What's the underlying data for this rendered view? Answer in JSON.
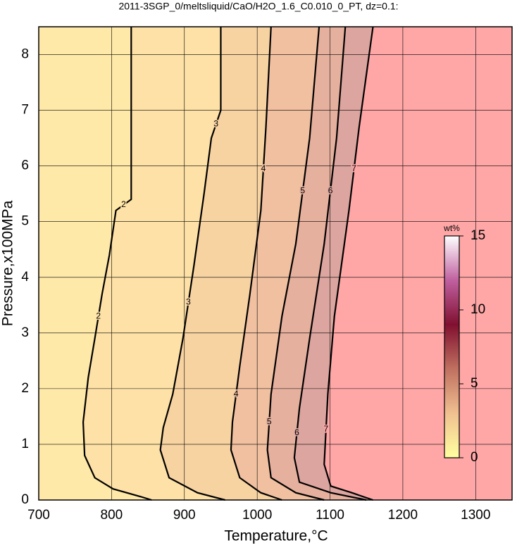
{
  "chart_data": {
    "type": "contour",
    "title": "2011-3SGP_0/meltsliquid/CaO/H2O_1.6_C0.010_0_PT, dz=0.1:",
    "x_label": "Temperature,°C",
    "y_label": "Pressure,x100MPa",
    "xlim": [
      700,
      1350
    ],
    "ylim": [
      0,
      8.5
    ],
    "xticks": [
      700,
      800,
      900,
      1000,
      1100,
      1200,
      1300
    ],
    "yticks": [
      0,
      1,
      2,
      3,
      4,
      5,
      6,
      7,
      8
    ],
    "grid": true,
    "base_color": "#ffe9a8",
    "series": [
      {
        "name": "2",
        "fill": "#fde1a6",
        "x": [
          827,
          827,
          806,
          797,
          787,
          777,
          768,
          761,
          763,
          777,
          802,
          840,
          855
        ],
        "y": [
          8.5,
          5.4,
          5.2,
          4.4,
          3.7,
          2.9,
          2.2,
          1.4,
          0.8,
          0.4,
          0.2,
          0.06,
          0
        ]
      },
      {
        "name": "3",
        "fill": "#f8d3a2",
        "x": [
          950,
          950,
          937,
          927,
          913,
          898,
          884,
          871,
          867,
          879,
          918,
          956
        ],
        "y": [
          8.5,
          7.0,
          6.5,
          5.5,
          4.2,
          2.9,
          1.9,
          1.3,
          0.9,
          0.4,
          0.13,
          0
        ]
      },
      {
        "name": "4",
        "fill": "#f0c0a0",
        "x": [
          1019,
          1012,
          1005,
          990,
          976,
          966,
          964,
          976,
          1005,
          1034
        ],
        "y": [
          8.5,
          6.7,
          5.2,
          3.7,
          2.4,
          1.4,
          0.9,
          0.4,
          0.13,
          0
        ]
      },
      {
        "name": "5",
        "fill": "#e6b09e",
        "x": [
          1085,
          1072,
          1053,
          1034,
          1019,
          1014,
          1019,
          1053,
          1092
        ],
        "y": [
          8.5,
          6.5,
          4.6,
          3.3,
          1.9,
          0.9,
          0.4,
          0.13,
          0
        ]
      },
      {
        "name": "6",
        "fill": "#dca59f",
        "x": [
          1121,
          1109,
          1092,
          1072,
          1058,
          1051,
          1058,
          1101,
          1150
        ],
        "y": [
          8.5,
          6.5,
          4.6,
          2.9,
          1.65,
          0.76,
          0.32,
          0.13,
          0
        ]
      },
      {
        "name": "7",
        "fill": "#ffa7a7",
        "x": [
          1159,
          1140,
          1126,
          1106,
          1097,
          1092,
          1101,
          1130,
          1159
        ],
        "y": [
          8.5,
          6.7,
          5.2,
          3.3,
          1.9,
          0.64,
          0.25,
          0.13,
          0
        ]
      }
    ],
    "colorbar": {
      "label": "wt%",
      "lim": [
        0,
        15
      ],
      "ticks": [
        0,
        5,
        10,
        15
      ],
      "colors": [
        "#ffffa0",
        "#f0c090",
        "#c07060",
        "#801030",
        "#c060a0",
        "#ffffff"
      ]
    }
  }
}
